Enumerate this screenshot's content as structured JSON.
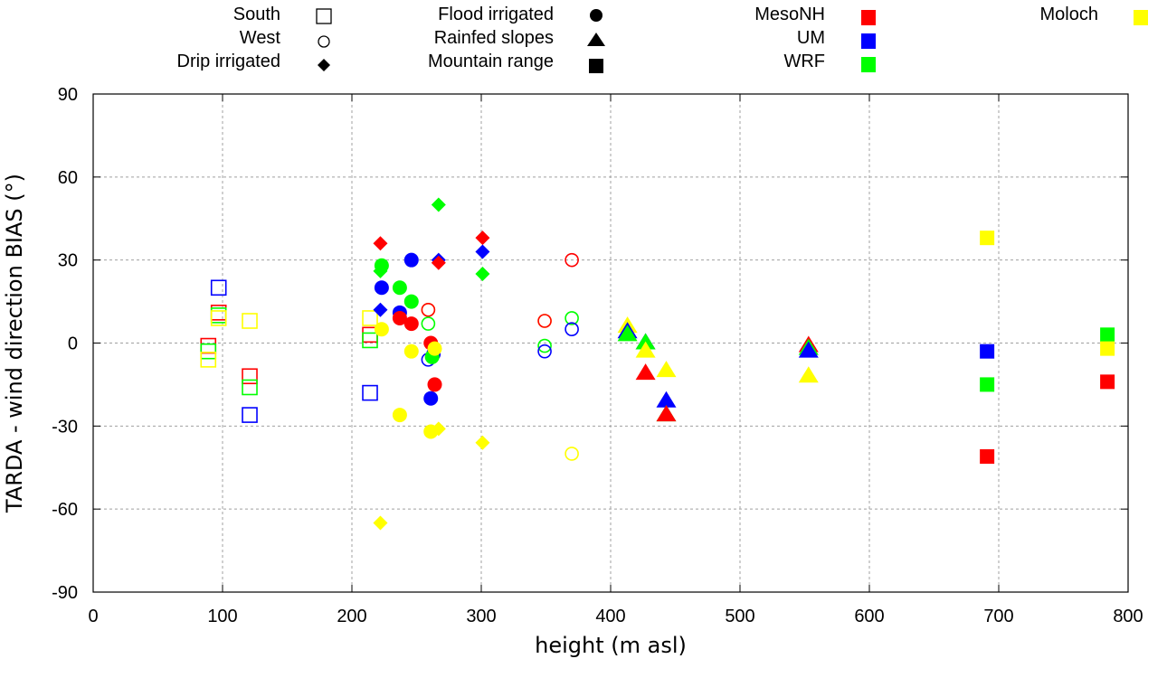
{
  "chart_data": {
    "type": "scatter",
    "title": "",
    "xlabel": "height (m asl)",
    "ylabel": "TARDA - wind direction BIAS (°)",
    "xlim": [
      0,
      800
    ],
    "ylim": [
      -90,
      90
    ],
    "xticks": [
      "0",
      "100",
      "200",
      "300",
      "400",
      "500",
      "600",
      "700",
      "800"
    ],
    "yticks": [
      "90",
      "60",
      "30",
      "0",
      "-30",
      "-60",
      "-90"
    ],
    "grid": true,
    "legend_placement": "top",
    "legend_sites": [
      {
        "name": "South",
        "marker": "open-square"
      },
      {
        "name": "West",
        "marker": "open-circle"
      },
      {
        "name": "Drip irrigated",
        "marker": "filled-diamond"
      },
      {
        "name": "Flood irrigated",
        "marker": "filled-circle"
      },
      {
        "name": "Rainfed slopes",
        "marker": "filled-triangle"
      },
      {
        "name": "Mountain range",
        "marker": "filled-square"
      }
    ],
    "legend_models": [
      {
        "name": "MesoNH",
        "color": "#ff0000"
      },
      {
        "name": "UM",
        "color": "#0000ff"
      },
      {
        "name": "WRF",
        "color": "#00ff00"
      },
      {
        "name": "Moloch",
        "color": "#ffff00"
      }
    ],
    "series": [
      {
        "name": "South",
        "marker": "open-square",
        "points": [
          {
            "model": "MesoNH",
            "x": 89,
            "y": -1
          },
          {
            "model": "WRF",
            "x": 89,
            "y": -3
          },
          {
            "model": "Moloch",
            "x": 89,
            "y": -6
          },
          {
            "model": "UM",
            "x": 97,
            "y": 20
          },
          {
            "model": "MesoNH",
            "x": 97,
            "y": 11
          },
          {
            "model": "WRF",
            "x": 97,
            "y": 10
          },
          {
            "model": "Moloch",
            "x": 97,
            "y": 9
          },
          {
            "model": "Moloch",
            "x": 121,
            "y": 8
          },
          {
            "model": "MesoNH",
            "x": 121,
            "y": -12
          },
          {
            "model": "WRF",
            "x": 121,
            "y": -16
          },
          {
            "model": "UM",
            "x": 121,
            "y": -26
          },
          {
            "model": "Moloch",
            "x": 214,
            "y": 9
          },
          {
            "model": "MesoNH",
            "x": 214,
            "y": 3
          },
          {
            "model": "WRF",
            "x": 214,
            "y": 1
          },
          {
            "model": "UM",
            "x": 214,
            "y": -18
          }
        ]
      },
      {
        "name": "West",
        "marker": "open-circle",
        "points": [
          {
            "model": "Moloch",
            "x": 259,
            "y": 12
          },
          {
            "model": "MesoNH",
            "x": 259,
            "y": 12
          },
          {
            "model": "WRF",
            "x": 259,
            "y": 7
          },
          {
            "model": "UM",
            "x": 259,
            "y": -6
          },
          {
            "model": "Moloch",
            "x": 349,
            "y": 8
          },
          {
            "model": "MesoNH",
            "x": 349,
            "y": 8
          },
          {
            "model": "WRF",
            "x": 349,
            "y": -1
          },
          {
            "model": "UM",
            "x": 349,
            "y": -3
          },
          {
            "model": "MesoNH",
            "x": 370,
            "y": 30
          },
          {
            "model": "WRF",
            "x": 370,
            "y": 9
          },
          {
            "model": "UM",
            "x": 370,
            "y": 5
          },
          {
            "model": "Moloch",
            "x": 370,
            "y": -40
          }
        ]
      },
      {
        "name": "Drip irrigated",
        "marker": "filled-diamond",
        "points": [
          {
            "model": "MesoNH",
            "x": 222,
            "y": 36
          },
          {
            "model": "WRF",
            "x": 222,
            "y": 26
          },
          {
            "model": "UM",
            "x": 222,
            "y": 12
          },
          {
            "model": "Moloch",
            "x": 222,
            "y": -65
          },
          {
            "model": "WRF",
            "x": 267,
            "y": 50
          },
          {
            "model": "UM",
            "x": 267,
            "y": 30
          },
          {
            "model": "MesoNH",
            "x": 267,
            "y": 29
          },
          {
            "model": "Moloch",
            "x": 267,
            "y": -31
          },
          {
            "model": "MesoNH",
            "x": 301,
            "y": 38
          },
          {
            "model": "UM",
            "x": 301,
            "y": 33
          },
          {
            "model": "WRF",
            "x": 301,
            "y": 25
          },
          {
            "model": "Moloch",
            "x": 301,
            "y": -36
          }
        ]
      },
      {
        "name": "Flood irrigated",
        "marker": "filled-circle",
        "points": [
          {
            "model": "WRF",
            "x": 223,
            "y": 28
          },
          {
            "model": "UM",
            "x": 223,
            "y": 20
          },
          {
            "model": "Moloch",
            "x": 223,
            "y": 5
          },
          {
            "model": "WRF",
            "x": 237,
            "y": 20
          },
          {
            "model": "UM",
            "x": 237,
            "y": 11
          },
          {
            "model": "MesoNH",
            "x": 237,
            "y": 9
          },
          {
            "model": "Moloch",
            "x": 237,
            "y": -26
          },
          {
            "model": "UM",
            "x": 246,
            "y": 30
          },
          {
            "model": "WRF",
            "x": 246,
            "y": 15
          },
          {
            "model": "MesoNH",
            "x": 246,
            "y": 7
          },
          {
            "model": "Moloch",
            "x": 246,
            "y": -3
          },
          {
            "model": "MesoNH",
            "x": 261,
            "y": 0
          },
          {
            "model": "UM",
            "x": 261,
            "y": -20
          },
          {
            "model": "Moloch",
            "x": 261,
            "y": -32
          },
          {
            "model": "UM",
            "x": 263,
            "y": -4
          },
          {
            "model": "WRF",
            "x": 262,
            "y": -5
          },
          {
            "model": "Moloch",
            "x": 264,
            "y": -2
          },
          {
            "model": "MesoNH",
            "x": 264,
            "y": -15
          }
        ]
      },
      {
        "name": "Rainfed slopes",
        "marker": "filled-triangle",
        "points": [
          {
            "model": "Moloch",
            "x": 413,
            "y": 6
          },
          {
            "model": "UM",
            "x": 413,
            "y": 4
          },
          {
            "model": "WRF",
            "x": 413,
            "y": 3
          },
          {
            "model": "UM",
            "x": 427,
            "y": 0
          },
          {
            "model": "WRF",
            "x": 427,
            "y": 0
          },
          {
            "model": "Moloch",
            "x": 427,
            "y": -3
          },
          {
            "model": "MesoNH",
            "x": 427,
            "y": -11
          },
          {
            "model": "Moloch",
            "x": 443,
            "y": -10
          },
          {
            "model": "UM",
            "x": 443,
            "y": -21
          },
          {
            "model": "WRF",
            "x": 443,
            "y": -26
          },
          {
            "model": "MesoNH",
            "x": 443,
            "y": -26
          },
          {
            "model": "MesoNH",
            "x": 553,
            "y": -1
          },
          {
            "model": "WRF",
            "x": 553,
            "y": -2
          },
          {
            "model": "UM",
            "x": 553,
            "y": -3
          },
          {
            "model": "Moloch",
            "x": 553,
            "y": -12
          }
        ]
      },
      {
        "name": "Mountain range",
        "marker": "filled-square",
        "points": [
          {
            "model": "Moloch",
            "x": 691,
            "y": 38
          },
          {
            "model": "UM",
            "x": 691,
            "y": -3
          },
          {
            "model": "WRF",
            "x": 691,
            "y": -15
          },
          {
            "model": "MesoNH",
            "x": 691,
            "y": -41
          },
          {
            "model": "WRF",
            "x": 784,
            "y": 3
          },
          {
            "model": "Moloch",
            "x": 784,
            "y": -2
          },
          {
            "model": "MesoNH",
            "x": 784,
            "y": -14
          }
        ]
      }
    ]
  }
}
